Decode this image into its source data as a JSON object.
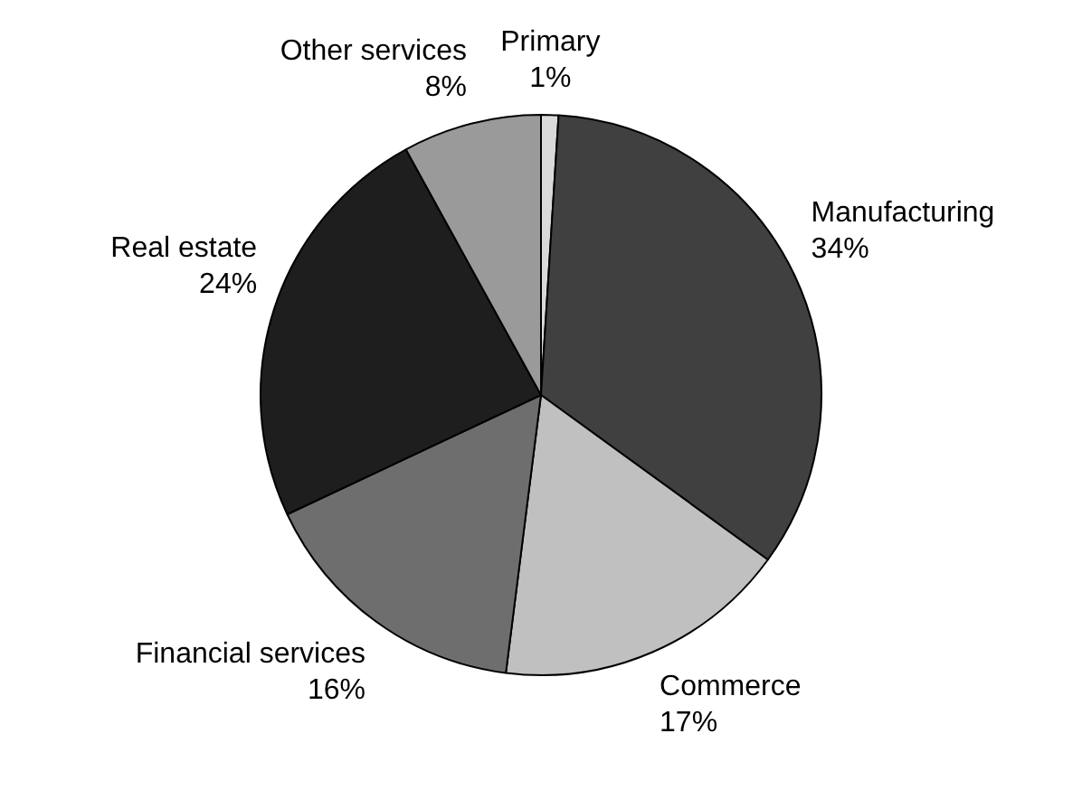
{
  "chart_data": {
    "type": "pie",
    "categories": [
      "Primary",
      "Manufacturing",
      "Commerce",
      "Financial services",
      "Real estate",
      "Other services"
    ],
    "values": [
      1,
      34,
      17,
      16,
      24,
      8
    ],
    "value_labels": [
      "1%",
      "34%",
      "17%",
      "16%",
      "24%",
      "8%"
    ],
    "colors": [
      "#d9d9d9",
      "#404040",
      "#c0c0c0",
      "#6e6e6e",
      "#1e1e1e",
      "#9a9a9a"
    ],
    "legend": false
  }
}
